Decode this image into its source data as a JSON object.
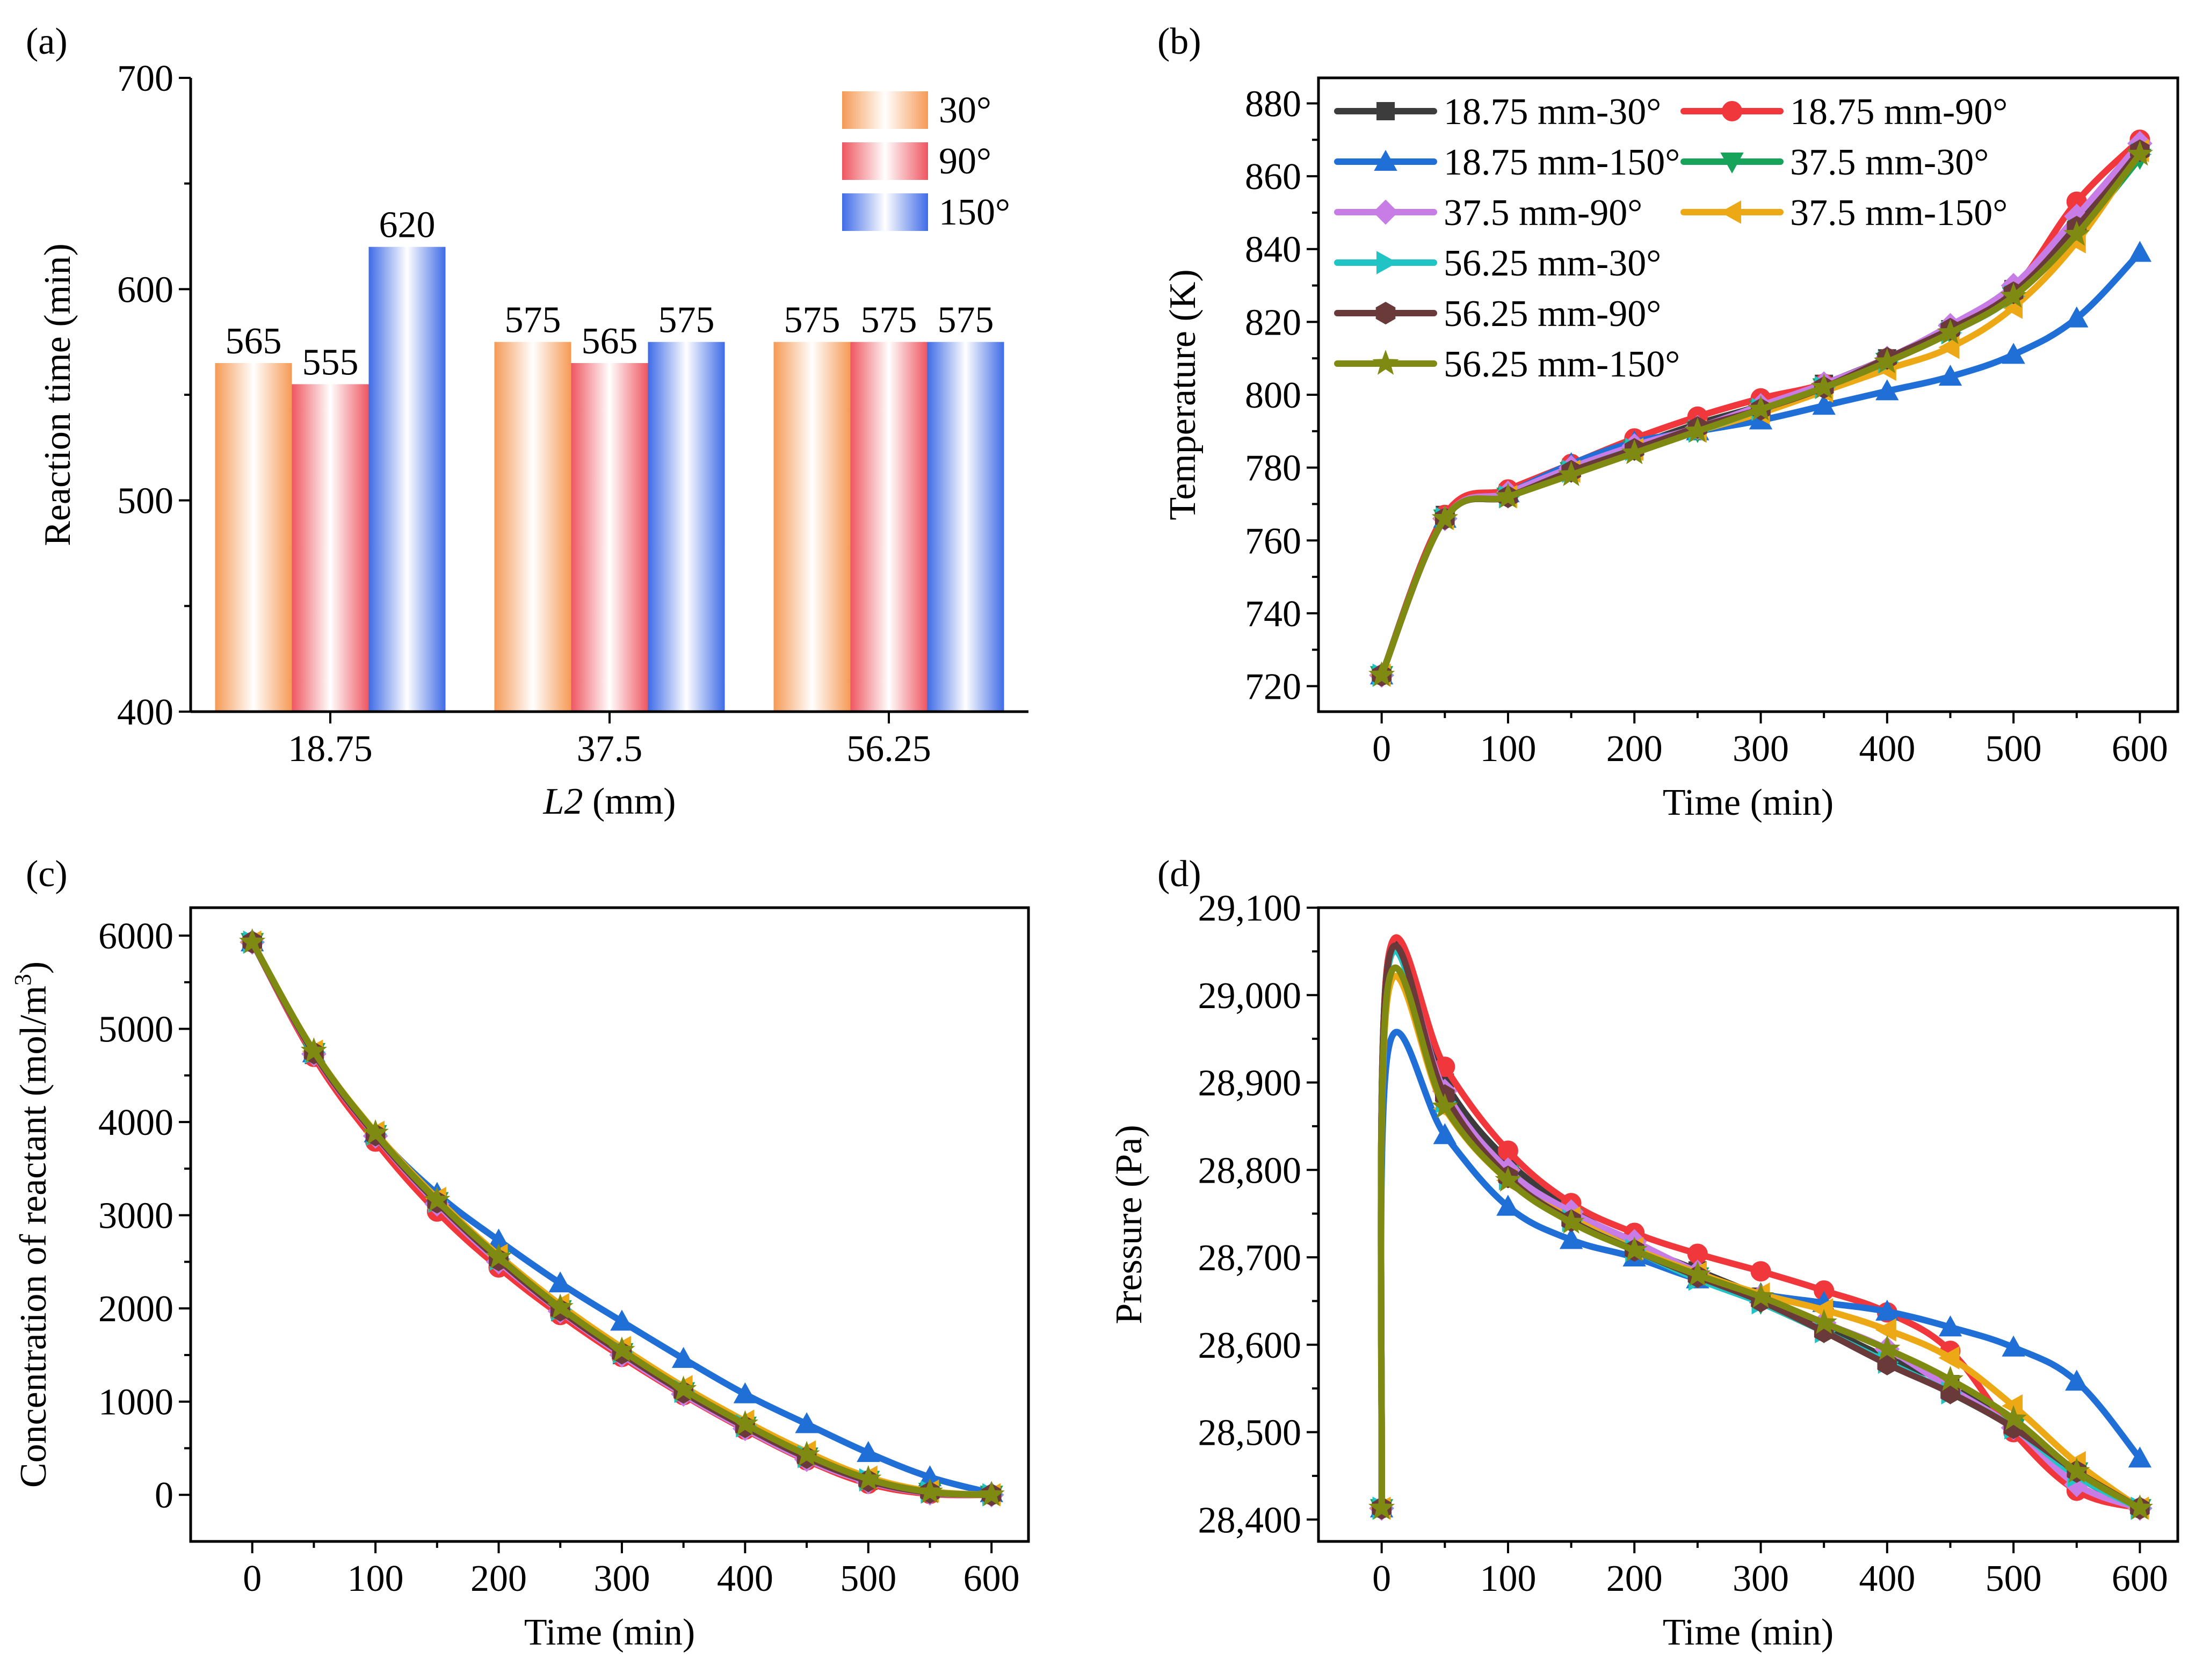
{
  "colors": {
    "s1": "#3c3c3c",
    "s2": "#f0373c",
    "s3": "#1f6fd6",
    "s4": "#17a35a",
    "s5": "#c87de6",
    "s6": "#eca815",
    "s7": "#20c4c4",
    "s8": "#6a3a3a",
    "s9": "#7f8a12",
    "bar30": "#f59a55",
    "bar90": "#ee5660",
    "bar150": "#3f6be6"
  },
  "chart_data": [
    {
      "panel": "(a)",
      "type": "bar",
      "title": "",
      "xlabel_italic": "L2",
      "xlabel_rest": " (mm)",
      "ylabel": "Reaction time (min)",
      "ylim": [
        400,
        700
      ],
      "yticks": [
        400,
        500,
        600,
        700
      ],
      "categories": [
        "18.75",
        "37.5",
        "56.25"
      ],
      "legend_position": "top-right",
      "series": [
        {
          "name": "30°",
          "values": [
            565,
            575,
            575
          ],
          "color_key": "bar30"
        },
        {
          "name": "90°",
          "values": [
            555,
            565,
            575
          ],
          "color_key": "bar90"
        },
        {
          "name": "150°",
          "values": [
            620,
            575,
            575
          ],
          "color_key": "bar150"
        }
      ],
      "data_labels": [
        [
          "565",
          "575",
          "575"
        ],
        [
          "555",
          "565",
          "575"
        ],
        [
          "620",
          "575",
          "575"
        ]
      ]
    },
    {
      "panel": "(b)",
      "type": "line",
      "xlabel": "Time (min)",
      "ylabel": "Temperature (K)",
      "xlim": [
        -50,
        630
      ],
      "ylim": [
        713,
        887
      ],
      "xticks": [
        0,
        100,
        200,
        300,
        400,
        500,
        600
      ],
      "yticks": [
        720,
        740,
        760,
        780,
        800,
        820,
        840,
        860,
        880
      ],
      "x": [
        0,
        50,
        100,
        150,
        200,
        250,
        300,
        350,
        400,
        450,
        500,
        550,
        600
      ],
      "legend_position": "top-left",
      "series": [
        {
          "name": "18.75 mm-30°",
          "marker": "square",
          "color_key": "s1",
          "values": [
            723,
            767,
            773,
            780,
            786,
            792,
            797,
            803,
            810,
            818,
            829,
            847,
            868
          ]
        },
        {
          "name": "18.75 mm-90°",
          "marker": "circle",
          "color_key": "s2",
          "values": [
            723,
            767,
            774,
            781,
            788,
            794,
            799,
            803,
            810,
            818,
            829,
            853,
            870
          ]
        },
        {
          "name": "18.75 mm-150°",
          "marker": "triangle-up",
          "color_key": "s3",
          "values": [
            723,
            766,
            773,
            781,
            787,
            790,
            793,
            797,
            801,
            805,
            811,
            821,
            839
          ]
        },
        {
          "name": "37.5 mm-30°",
          "marker": "triangle-down",
          "color_key": "s4",
          "values": [
            723,
            766,
            772,
            779,
            785,
            790,
            796,
            802,
            809,
            817,
            827,
            844,
            865
          ]
        },
        {
          "name": "37.5 mm-90°",
          "marker": "diamond",
          "color_key": "s5",
          "values": [
            723,
            766,
            773,
            780,
            786,
            791,
            797,
            803,
            810,
            819,
            830,
            849,
            869
          ]
        },
        {
          "name": "37.5 mm-150°",
          "marker": "triangle-left",
          "color_key": "s6",
          "values": [
            723,
            766,
            772,
            779,
            785,
            790,
            795,
            801,
            807,
            813,
            824,
            842,
            867
          ]
        },
        {
          "name": "56.25 mm-30°",
          "marker": "triangle-right",
          "color_key": "s7",
          "values": [
            723,
            766,
            772,
            779,
            785,
            790,
            796,
            802,
            809,
            817,
            827,
            845,
            866
          ]
        },
        {
          "name": "56.25 mm-90°",
          "marker": "hexagon",
          "color_key": "s8",
          "values": [
            723,
            766,
            772,
            779,
            785,
            791,
            796,
            802,
            810,
            818,
            828,
            846,
            867
          ]
        },
        {
          "name": "56.25 mm-150°",
          "marker": "star",
          "color_key": "s9",
          "values": [
            723,
            766,
            772,
            778,
            784,
            790,
            796,
            802,
            809,
            817,
            827,
            844,
            866
          ]
        }
      ]
    },
    {
      "panel": "(c)",
      "type": "line",
      "xlabel": "Time (min)",
      "ylabel": "Concentration of reactant (mol/m",
      "ylabel_sup": "3",
      "ylabel_end": ")",
      "xlim": [
        -50,
        630
      ],
      "ylim": [
        -500,
        6300
      ],
      "xticks": [
        0,
        100,
        200,
        300,
        400,
        500,
        600
      ],
      "yticks": [
        0,
        1000,
        2000,
        3000,
        4000,
        5000,
        6000
      ],
      "x": [
        0,
        50,
        100,
        150,
        200,
        250,
        300,
        350,
        400,
        450,
        500,
        550,
        600
      ],
      "series": [
        {
          "name": "18.75 mm-30°",
          "marker": "square",
          "color_key": "s1",
          "values": [
            5930,
            4720,
            3840,
            3110,
            2490,
            1960,
            1500,
            1090,
            720,
            400,
            150,
            20,
            0
          ]
        },
        {
          "name": "18.75 mm-90°",
          "marker": "circle",
          "color_key": "s2",
          "values": [
            5930,
            4700,
            3790,
            3040,
            2440,
            1930,
            1480,
            1070,
            700,
            370,
            120,
            10,
            0
          ]
        },
        {
          "name": "18.75 mm-150°",
          "marker": "triangle-up",
          "color_key": "s3",
          "values": [
            5930,
            4740,
            3880,
            3230,
            2730,
            2270,
            1860,
            1460,
            1080,
            760,
            450,
            190,
            20
          ]
        },
        {
          "name": "37.5 mm-30°",
          "marker": "triangle-down",
          "color_key": "s4",
          "values": [
            5930,
            4750,
            3870,
            3150,
            2530,
            1990,
            1530,
            1110,
            740,
            410,
            160,
            30,
            0
          ]
        },
        {
          "name": "37.5 mm-90°",
          "marker": "diamond",
          "color_key": "s5",
          "values": [
            5930,
            4730,
            3850,
            3120,
            2500,
            1970,
            1500,
            1080,
            710,
            380,
            140,
            20,
            0
          ]
        },
        {
          "name": "37.5 mm-150°",
          "marker": "triangle-left",
          "color_key": "s6",
          "values": [
            5930,
            4760,
            3890,
            3180,
            2570,
            2040,
            1580,
            1160,
            790,
            460,
            190,
            40,
            0
          ]
        },
        {
          "name": "56.25 mm-30°",
          "marker": "triangle-right",
          "color_key": "s7",
          "values": [
            5930,
            4750,
            3870,
            3150,
            2530,
            1990,
            1530,
            1110,
            740,
            410,
            160,
            30,
            0
          ]
        },
        {
          "name": "56.25 mm-90°",
          "marker": "hexagon",
          "color_key": "s8",
          "values": [
            5930,
            4740,
            3860,
            3140,
            2520,
            1980,
            1520,
            1100,
            730,
            400,
            150,
            25,
            0
          ]
        },
        {
          "name": "56.25 mm-150°",
          "marker": "star",
          "color_key": "s9",
          "values": [
            5930,
            4760,
            3880,
            3160,
            2550,
            2010,
            1550,
            1130,
            760,
            430,
            170,
            30,
            0
          ]
        }
      ]
    },
    {
      "panel": "(d)",
      "type": "line",
      "xlabel": "Time (min)",
      "ylabel": "Pressure (Pa)",
      "xlim": [
        -50,
        630
      ],
      "ylim": [
        28375,
        29100
      ],
      "xticks": [
        0,
        100,
        200,
        300,
        400,
        500,
        600
      ],
      "yticks": [
        28400,
        28500,
        28600,
        28700,
        28800,
        28900,
        29000,
        29100
      ],
      "ytick_labels": [
        "28,400",
        "28,500",
        "28,600",
        "28,700",
        "28,800",
        "28,900",
        "29,000",
        "29,100"
      ],
      "x": [
        0,
        5,
        50,
        100,
        150,
        200,
        250,
        300,
        350,
        400,
        450,
        500,
        550,
        600
      ],
      "series": [
        {
          "name": "18.75 mm-30°",
          "marker": "square",
          "color_key": "s1",
          "values": [
            28413,
            29040,
            28900,
            28810,
            28755,
            28715,
            28685,
            28655,
            28620,
            28585,
            28555,
            28510,
            28450,
            28413
          ]
        },
        {
          "name": "18.75 mm-90°",
          "marker": "circle",
          "color_key": "s2",
          "values": [
            28413,
            29040,
            28918,
            28822,
            28762,
            28728,
            28704,
            28684,
            28662,
            28637,
            28593,
            28500,
            28433,
            28413
          ]
        },
        {
          "name": "18.75 mm-150°",
          "marker": "triangle-up",
          "color_key": "s3",
          "values": [
            28413,
            28935,
            28840,
            28758,
            28720,
            28700,
            28675,
            28658,
            28648,
            28638,
            28620,
            28597,
            28558,
            28470
          ]
        },
        {
          "name": "37.5 mm-30°",
          "marker": "triangle-down",
          "color_key": "s4",
          "values": [
            28413,
            29030,
            28880,
            28795,
            28745,
            28710,
            28678,
            28648,
            28615,
            28580,
            28545,
            28505,
            28455,
            28413
          ]
        },
        {
          "name": "37.5 mm-90°",
          "marker": "diamond",
          "color_key": "s5",
          "values": [
            28413,
            29030,
            28890,
            28800,
            28752,
            28718,
            28683,
            28655,
            28625,
            28595,
            28550,
            28505,
            28440,
            28413
          ]
        },
        {
          "name": "37.5 mm-150°",
          "marker": "triangle-left",
          "color_key": "s6",
          "values": [
            28413,
            29000,
            28870,
            28788,
            28745,
            28710,
            28682,
            28658,
            28640,
            28617,
            28585,
            28530,
            28465,
            28413
          ]
        },
        {
          "name": "56.25 mm-30°",
          "marker": "triangle-right",
          "color_key": "s7",
          "values": [
            28413,
            29030,
            28878,
            28790,
            28742,
            28708,
            28675,
            28648,
            28615,
            28580,
            28545,
            28505,
            28450,
            28413
          ]
        },
        {
          "name": "56.25 mm-90°",
          "marker": "hexagon",
          "color_key": "s8",
          "values": [
            28413,
            29035,
            28885,
            28792,
            28742,
            28708,
            28678,
            28650,
            28615,
            28578,
            28545,
            28505,
            28455,
            28413
          ]
        },
        {
          "name": "56.25 mm-150°",
          "marker": "star",
          "color_key": "s9",
          "values": [
            28413,
            29010,
            28872,
            28788,
            28740,
            28708,
            28680,
            28655,
            28625,
            28595,
            28560,
            28515,
            28455,
            28413
          ]
        }
      ]
    }
  ]
}
